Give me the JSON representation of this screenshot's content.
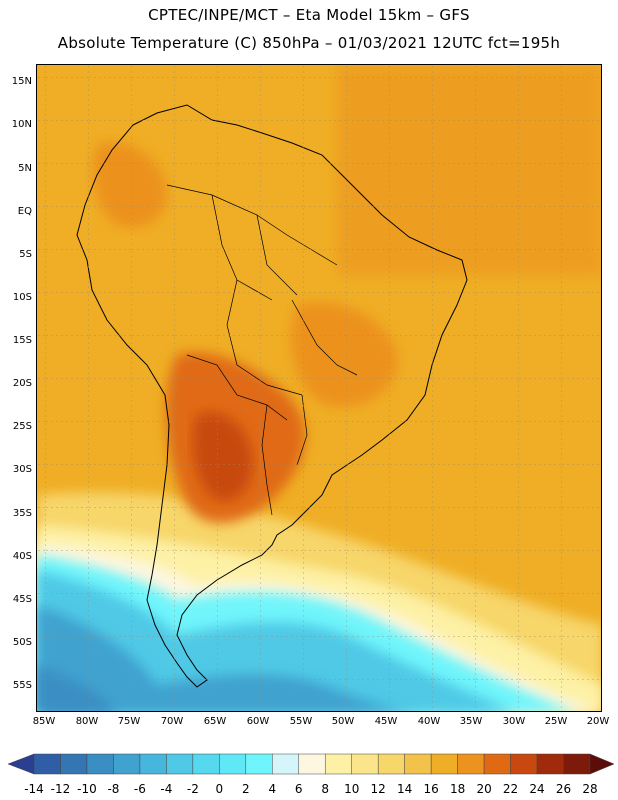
{
  "header": {
    "line1": "CPTEC/INPE/MCT –  Eta Model 15km – GFS",
    "line2": "Absolute Temperature (C) 850hPa – 01/03/2021 12UTC fct=195h"
  },
  "map": {
    "lat_labels": [
      "15N",
      "10N",
      "5N",
      "EQ",
      "5S",
      "10S",
      "15S",
      "20S",
      "25S",
      "30S",
      "35S",
      "40S",
      "45S",
      "50S",
      "55S"
    ],
    "lon_labels": [
      "85W",
      "80W",
      "75W",
      "70W",
      "65W",
      "60W",
      "55W",
      "50W",
      "45W",
      "40W",
      "35W",
      "30W",
      "25W",
      "20W"
    ]
  },
  "colorbar": {
    "labels": [
      "-14",
      "-12",
      "-10",
      "-8",
      "-6",
      "-4",
      "-2",
      "0",
      "2",
      "4",
      "6",
      "8",
      "10",
      "12",
      "14",
      "16",
      "18",
      "20",
      "22",
      "24",
      "26",
      "28"
    ],
    "colors": [
      "#2a3f8f",
      "#2f5ea6",
      "#3476b4",
      "#3a8ec3",
      "#3fa2cf",
      "#46b6dc",
      "#4fc9e6",
      "#56d8ee",
      "#5fe8f6",
      "#6ff5fb",
      "#d4f6fb",
      "#fdf6e0",
      "#fdf1a6",
      "#fbe58a",
      "#f7d66a",
      "#f2c24a",
      "#efae25",
      "#ec921e",
      "#e06a14",
      "#c8480f",
      "#a02a0c",
      "#7d1a0a",
      "#5a0d09"
    ]
  }
}
